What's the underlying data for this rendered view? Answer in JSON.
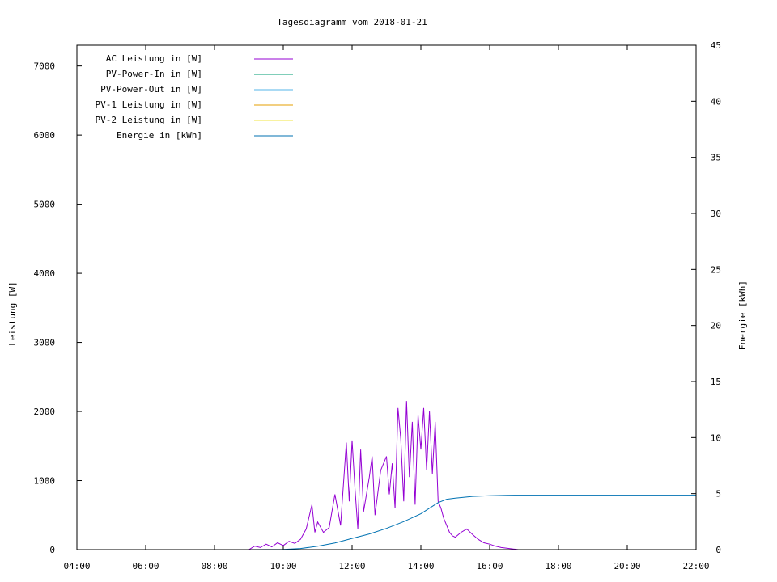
{
  "chart_data": {
    "type": "line",
    "title": "Tagesdiagramm vom 2018-01-21",
    "ylabel": "Leistung [W]",
    "y2label": "Energie [kWh]",
    "xlim": [
      "04:00",
      "22:00"
    ],
    "ylim": [
      0,
      7300
    ],
    "y2lim": [
      0,
      45
    ],
    "xticks": [
      "04:00",
      "06:00",
      "08:00",
      "10:00",
      "12:00",
      "14:00",
      "16:00",
      "18:00",
      "20:00",
      "22:00"
    ],
    "yticks": [
      0,
      1000,
      2000,
      3000,
      4000,
      5000,
      6000,
      7000
    ],
    "y2ticks": [
      0,
      5,
      10,
      15,
      20,
      25,
      30,
      35,
      40,
      45
    ],
    "legend_position": "top-left",
    "series": [
      {
        "name": "AC Leistung in [W]",
        "axis": "left",
        "color": "#9400d3",
        "x": [
          "09:00",
          "09:10",
          "09:20",
          "09:30",
          "09:40",
          "09:50",
          "10:00",
          "10:10",
          "10:20",
          "10:30",
          "10:40",
          "10:50",
          "10:55",
          "11:00",
          "11:10",
          "11:20",
          "11:30",
          "11:40",
          "11:50",
          "11:55",
          "12:00",
          "12:05",
          "12:10",
          "12:15",
          "12:20",
          "12:30",
          "12:35",
          "12:40",
          "12:50",
          "13:00",
          "13:05",
          "13:10",
          "13:15",
          "13:20",
          "13:25",
          "13:30",
          "13:35",
          "13:40",
          "13:45",
          "13:50",
          "13:55",
          "14:00",
          "14:05",
          "14:10",
          "14:15",
          "14:20",
          "14:25",
          "14:30",
          "14:35",
          "14:40",
          "14:45",
          "14:50",
          "14:55",
          "15:00",
          "15:10",
          "15:20",
          "15:30",
          "15:40",
          "15:50",
          "16:00",
          "16:10",
          "16:20",
          "16:30",
          "16:40",
          "16:50"
        ],
        "values": [
          0,
          50,
          30,
          80,
          40,
          100,
          60,
          120,
          90,
          150,
          300,
          650,
          250,
          400,
          250,
          320,
          800,
          350,
          1550,
          700,
          1580,
          900,
          300,
          1450,
          550,
          1050,
          1350,
          500,
          1150,
          1350,
          800,
          1250,
          600,
          2050,
          1600,
          700,
          2150,
          1050,
          1850,
          650,
          1950,
          1450,
          2050,
          1150,
          2000,
          1100,
          1850,
          700,
          600,
          450,
          350,
          250,
          200,
          180,
          250,
          300,
          220,
          150,
          100,
          80,
          50,
          30,
          20,
          10,
          0
        ]
      },
      {
        "name": "PV-Power-In in [W]",
        "axis": "left",
        "color": "#009e73",
        "x": [],
        "values": []
      },
      {
        "name": "PV-Power-Out in [W]",
        "axis": "left",
        "color": "#56b4e9",
        "x": [],
        "values": []
      },
      {
        "name": "PV-1 Leistung in [W]",
        "axis": "left",
        "color": "#e69f00",
        "x": [],
        "values": []
      },
      {
        "name": "PV-2 Leistung in [W]",
        "axis": "left",
        "color": "#f0e442",
        "x": [],
        "values": []
      },
      {
        "name": "Energie in [kWh]",
        "axis": "right",
        "color": "#0072b2",
        "x": [
          "09:00",
          "10:00",
          "10:30",
          "11:00",
          "11:30",
          "12:00",
          "12:30",
          "13:00",
          "13:30",
          "14:00",
          "14:30",
          "14:45",
          "15:00",
          "15:30",
          "16:00",
          "16:30",
          "17:00",
          "18:00",
          "20:00",
          "22:00"
        ],
        "values": [
          0,
          0.02,
          0.1,
          0.3,
          0.6,
          1.0,
          1.4,
          1.9,
          2.5,
          3.2,
          4.2,
          4.5,
          4.6,
          4.75,
          4.82,
          4.85,
          4.86,
          4.86,
          4.86,
          4.86
        ]
      }
    ]
  }
}
